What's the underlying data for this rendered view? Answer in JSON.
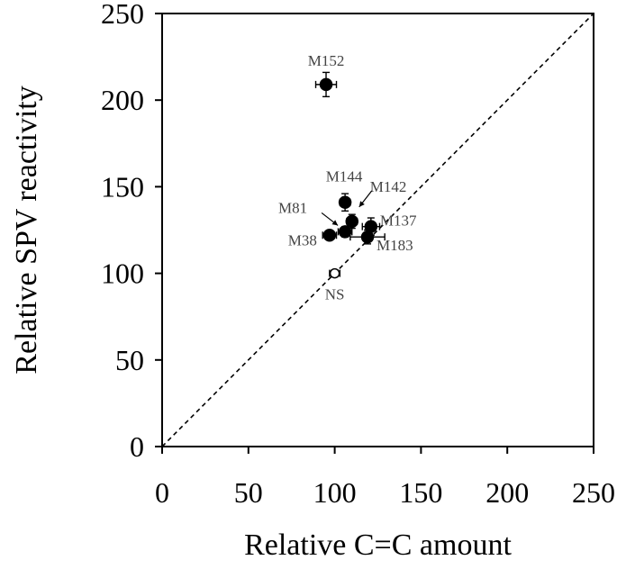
{
  "chart_data": {
    "type": "scatter",
    "xlabel": "Relative C=C amount",
    "ylabel": "Relative SPV reactivity",
    "xlim": [
      0,
      250
    ],
    "ylim": [
      0,
      250
    ],
    "xticks": [
      0,
      50,
      100,
      150,
      200,
      250
    ],
    "yticks": [
      0,
      50,
      100,
      150,
      200,
      250
    ],
    "reference_line": {
      "style": "dashed",
      "from": [
        0,
        0
      ],
      "to": [
        250,
        250
      ]
    },
    "points": [
      {
        "label": "M152",
        "x": 95,
        "y": 209,
        "xerr": 6,
        "yerr": 7,
        "filled": true
      },
      {
        "label": "M144",
        "x": 106,
        "y": 141,
        "xerr": 3,
        "yerr": 5,
        "filled": true
      },
      {
        "label": "M142",
        "x": 110,
        "y": 130,
        "xerr": 3,
        "yerr": 4,
        "filled": true
      },
      {
        "label": "M81",
        "x": 106,
        "y": 124,
        "xerr": 4,
        "yerr": 3,
        "filled": true
      },
      {
        "label": "M137",
        "x": 121,
        "y": 127,
        "xerr": 5,
        "yerr": 5,
        "filled": true
      },
      {
        "label": "M183",
        "x": 119,
        "y": 121,
        "xerr": 10,
        "yerr": 4,
        "filled": true
      },
      {
        "label": "M38",
        "x": 97,
        "y": 122,
        "xerr": 4,
        "yerr": 2,
        "filled": true
      },
      {
        "label": "NS",
        "x": 100,
        "y": 100,
        "xerr": 3,
        "yerr": 2,
        "filled": false
      }
    ]
  }
}
